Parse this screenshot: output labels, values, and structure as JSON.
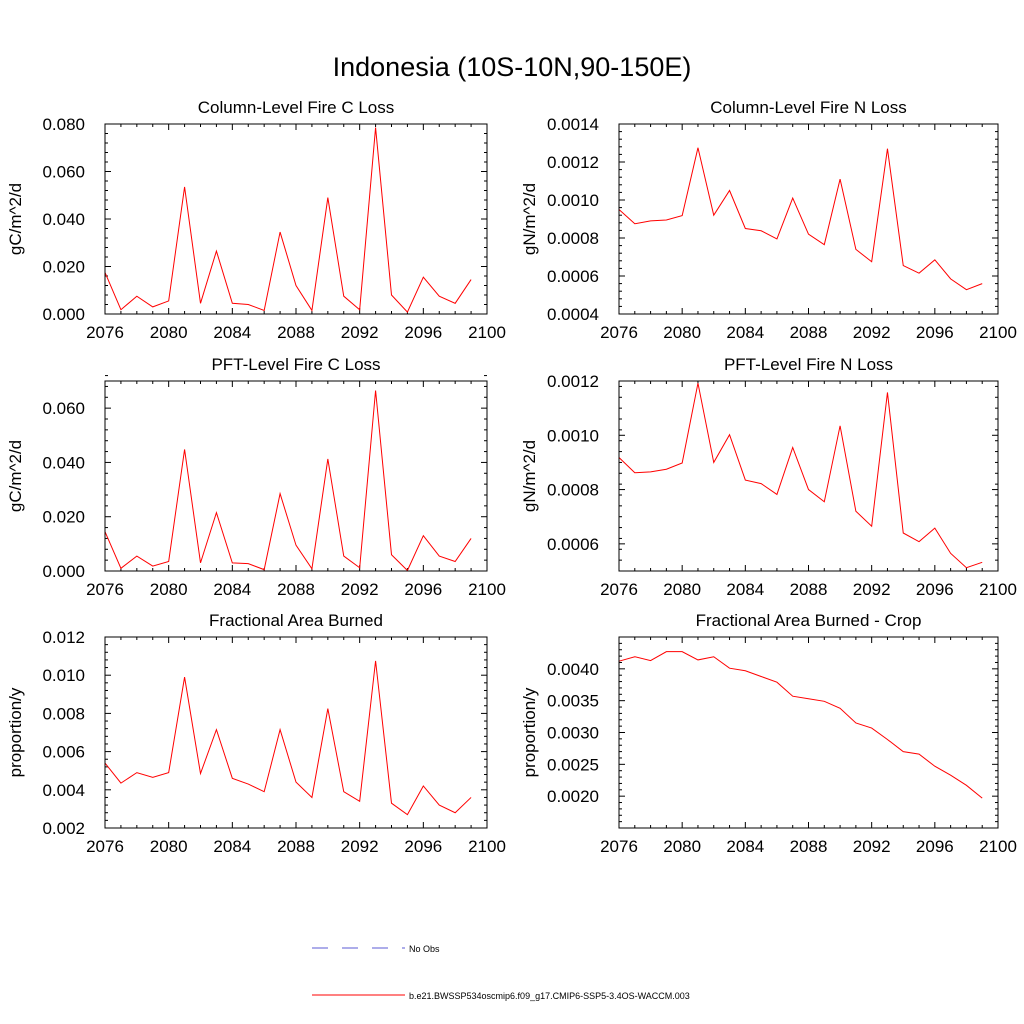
{
  "figure": {
    "title": "Indonesia (10S-10N,90-150E)",
    "legend": {
      "entries": [
        {
          "label": "No Obs",
          "color": "#5b5bd6",
          "style": "dashed"
        },
        {
          "label": "b.e21.BWSSP534oscmip6.f09_g17.CMIP6-SSP5-3.4OS-WACCM.003",
          "color": "#ff0000",
          "style": "solid"
        }
      ]
    }
  },
  "chart_data": [
    {
      "type": "line",
      "title": "Column-Level Fire C Loss",
      "xlabel": "",
      "ylabel": "gC/m^2/d",
      "xlim": [
        2076,
        2100
      ],
      "ylim": [
        0,
        0.08
      ],
      "xticks": [
        2076,
        2080,
        2084,
        2088,
        2092,
        2096,
        2100
      ],
      "xtick_labels": [
        "2076",
        "2080",
        "2084",
        "2088",
        "2092",
        "2096",
        "2100"
      ],
      "yticks": [
        0,
        0.02,
        0.04,
        0.06,
        0.08
      ],
      "ytick_labels": [
        "0.000",
        "0.020",
        "0.040",
        "0.060",
        "0.080"
      ],
      "series": [
        {
          "name": "b.e21.BWSSP534oscmip6.f09_g17.CMIP6-SSP5-3.4OS-WACCM.003",
          "color": "#ff0000",
          "x": [
            2076,
            2077,
            2078,
            2079,
            2080,
            2081,
            2082,
            2083,
            2084,
            2085,
            2086,
            2087,
            2088,
            2089,
            2090,
            2091,
            2092,
            2093,
            2094,
            2095,
            2096,
            2097,
            2098,
            2099
          ],
          "values": [
            0.0175,
            0.0018,
            0.0075,
            0.003,
            0.0055,
            0.0535,
            0.0045,
            0.0265,
            0.0045,
            0.004,
            0.0015,
            0.0345,
            0.012,
            0.0015,
            0.049,
            0.0075,
            0.0018,
            0.0785,
            0.008,
            0.0008,
            0.0155,
            0.0075,
            0.0045,
            0.0145
          ]
        }
      ]
    },
    {
      "type": "line",
      "title": "Column-Level Fire N Loss",
      "xlabel": "",
      "ylabel": "gN/m^2/d",
      "xlim": [
        2076,
        2100
      ],
      "ylim": [
        0.0004,
        0.0014
      ],
      "xticks": [
        2076,
        2080,
        2084,
        2088,
        2092,
        2096,
        2100
      ],
      "xtick_labels": [
        "2076",
        "2080",
        "2084",
        "2088",
        "2092",
        "2096",
        "2100"
      ],
      "yticks": [
        0.0004,
        0.0006,
        0.0008,
        0.001,
        0.0012,
        0.0014
      ],
      "ytick_labels": [
        "0.0004",
        "0.0006",
        "0.0008",
        "0.0010",
        "0.0012",
        "0.0014"
      ],
      "series": [
        {
          "name": "b.e21.BWSSP534oscmip6.f09_g17.CMIP6-SSP5-3.4OS-WACCM.003",
          "color": "#ff0000",
          "x": [
            2076,
            2077,
            2078,
            2079,
            2080,
            2081,
            2082,
            2083,
            2084,
            2085,
            2086,
            2087,
            2088,
            2089,
            2090,
            2091,
            2092,
            2093,
            2094,
            2095,
            2096,
            2097,
            2098,
            2099
          ],
          "values": [
            0.00095,
            0.000875,
            0.00089,
            0.000895,
            0.000918,
            0.001275,
            0.00092,
            0.00105,
            0.00085,
            0.000838,
            0.000795,
            0.00101,
            0.00082,
            0.000765,
            0.00111,
            0.00074,
            0.000675,
            0.00127,
            0.000655,
            0.000615,
            0.000685,
            0.000585,
            0.000528,
            0.00056
          ]
        }
      ]
    },
    {
      "type": "line",
      "title": "PFT-Level Fire C Loss",
      "xlabel": "",
      "ylabel": "gC/m^2/d",
      "xlim": [
        2076,
        2100
      ],
      "ylim": [
        0,
        0.07
      ],
      "xticks": [
        2076,
        2080,
        2084,
        2088,
        2092,
        2096,
        2100
      ],
      "xtick_labels": [
        "2076",
        "2080",
        "2084",
        "2088",
        "2092",
        "2096",
        "2100"
      ],
      "yticks": [
        0,
        0.02,
        0.04,
        0.06
      ],
      "ytick_labels": [
        "0.000",
        "0.020",
        "0.040",
        "0.060"
      ],
      "series": [
        {
          "name": "b.e21.BWSSP534oscmip6.f09_g17.CMIP6-SSP5-3.4OS-WACCM.003",
          "color": "#ff0000",
          "x": [
            2076,
            2077,
            2078,
            2079,
            2080,
            2081,
            2082,
            2083,
            2084,
            2085,
            2086,
            2087,
            2088,
            2089,
            2090,
            2091,
            2092,
            2093,
            2094,
            2095,
            2096,
            2097,
            2098,
            2099
          ],
          "values": [
            0.0145,
            0.001,
            0.0055,
            0.0018,
            0.0035,
            0.0448,
            0.003,
            0.0215,
            0.003,
            0.0027,
            0.0005,
            0.0285,
            0.0095,
            0.0008,
            0.0413,
            0.0055,
            0.0012,
            0.0665,
            0.006,
            0.0002,
            0.013,
            0.0055,
            0.0035,
            0.012
          ]
        }
      ]
    },
    {
      "type": "line",
      "title": "PFT-Level Fire N Loss",
      "xlabel": "",
      "ylabel": "gN/m^2/d",
      "xlim": [
        2076,
        2100
      ],
      "ylim": [
        0.0005,
        0.0012
      ],
      "xticks": [
        2076,
        2080,
        2084,
        2088,
        2092,
        2096,
        2100
      ],
      "xtick_labels": [
        "2076",
        "2080",
        "2084",
        "2088",
        "2092",
        "2096",
        "2100"
      ],
      "yticks": [
        0.0006,
        0.0008,
        0.001,
        0.0012
      ],
      "ytick_labels": [
        "0.0006",
        "0.0008",
        "0.0010",
        "0.0012"
      ],
      "series": [
        {
          "name": "b.e21.BWSSP534oscmip6.f09_g17.CMIP6-SSP5-3.4OS-WACCM.003",
          "color": "#ff0000",
          "x": [
            2076,
            2077,
            2078,
            2079,
            2080,
            2081,
            2082,
            2083,
            2084,
            2085,
            2086,
            2087,
            2088,
            2089,
            2090,
            2091,
            2092,
            2093,
            2094,
            2095,
            2096,
            2097,
            2098,
            2099
          ],
          "values": [
            0.000918,
            0.000862,
            0.000865,
            0.000875,
            0.000898,
            0.001192,
            0.0009,
            0.001002,
            0.000835,
            0.000822,
            0.000782,
            0.000955,
            0.0008,
            0.000755,
            0.001035,
            0.00072,
            0.000665,
            0.001158,
            0.00064,
            0.000608,
            0.000658,
            0.000565,
            0.000512,
            0.000532
          ]
        }
      ]
    },
    {
      "type": "line",
      "title": "Fractional Area Burned",
      "xlabel": "",
      "ylabel": "proportion/y",
      "xlim": [
        2076,
        2100
      ],
      "ylim": [
        0.002,
        0.012
      ],
      "xticks": [
        2076,
        2080,
        2084,
        2088,
        2092,
        2096,
        2100
      ],
      "xtick_labels": [
        "2076",
        "2080",
        "2084",
        "2088",
        "2092",
        "2096",
        "2100"
      ],
      "yticks": [
        0.002,
        0.004,
        0.006,
        0.008,
        0.01,
        0.012
      ],
      "ytick_labels": [
        "0.002",
        "0.004",
        "0.006",
        "0.008",
        "0.010",
        "0.012"
      ],
      "series": [
        {
          "name": "b.e21.BWSSP534oscmip6.f09_g17.CMIP6-SSP5-3.4OS-WACCM.003",
          "color": "#ff0000",
          "x": [
            2076,
            2077,
            2078,
            2079,
            2080,
            2081,
            2082,
            2083,
            2084,
            2085,
            2086,
            2087,
            2088,
            2089,
            2090,
            2091,
            2092,
            2093,
            2094,
            2095,
            2096,
            2097,
            2098,
            2099
          ],
          "values": [
            0.0054,
            0.00435,
            0.0049,
            0.00465,
            0.0049,
            0.0099,
            0.00485,
            0.00715,
            0.0046,
            0.0043,
            0.0039,
            0.00715,
            0.0044,
            0.0036,
            0.00825,
            0.0039,
            0.0034,
            0.01075,
            0.0033,
            0.0027,
            0.0042,
            0.0032,
            0.0028,
            0.0036
          ]
        }
      ]
    },
    {
      "type": "line",
      "title": "Fractional Area Burned - Crop",
      "xlabel": "",
      "ylabel": "proportion/y",
      "xlim": [
        2076,
        2100
      ],
      "ylim": [
        0.0015,
        0.0045
      ],
      "xticks": [
        2076,
        2080,
        2084,
        2088,
        2092,
        2096,
        2100
      ],
      "xtick_labels": [
        "2076",
        "2080",
        "2084",
        "2088",
        "2092",
        "2096",
        "2100"
      ],
      "yticks": [
        0.002,
        0.0025,
        0.003,
        0.0035,
        0.004
      ],
      "ytick_labels": [
        "0.0020",
        "0.0025",
        "0.0030",
        "0.0035",
        "0.0040"
      ],
      "series": [
        {
          "name": "b.e21.BWSSP534oscmip6.f09_g17.CMIP6-SSP5-3.4OS-WACCM.003",
          "color": "#ff0000",
          "x": [
            2076,
            2077,
            2078,
            2079,
            2080,
            2081,
            2082,
            2083,
            2084,
            2085,
            2086,
            2087,
            2088,
            2089,
            2090,
            2091,
            2092,
            2093,
            2094,
            2095,
            2096,
            2097,
            2098,
            2099
          ],
          "values": [
            0.00412,
            0.00419,
            0.00413,
            0.00427,
            0.00427,
            0.00414,
            0.00419,
            0.00401,
            0.00397,
            0.00388,
            0.00379,
            0.00357,
            0.00353,
            0.00349,
            0.00338,
            0.00315,
            0.00307,
            0.00289,
            0.0027,
            0.00266,
            0.00247,
            0.00233,
            0.00217,
            0.00197
          ]
        }
      ]
    }
  ]
}
